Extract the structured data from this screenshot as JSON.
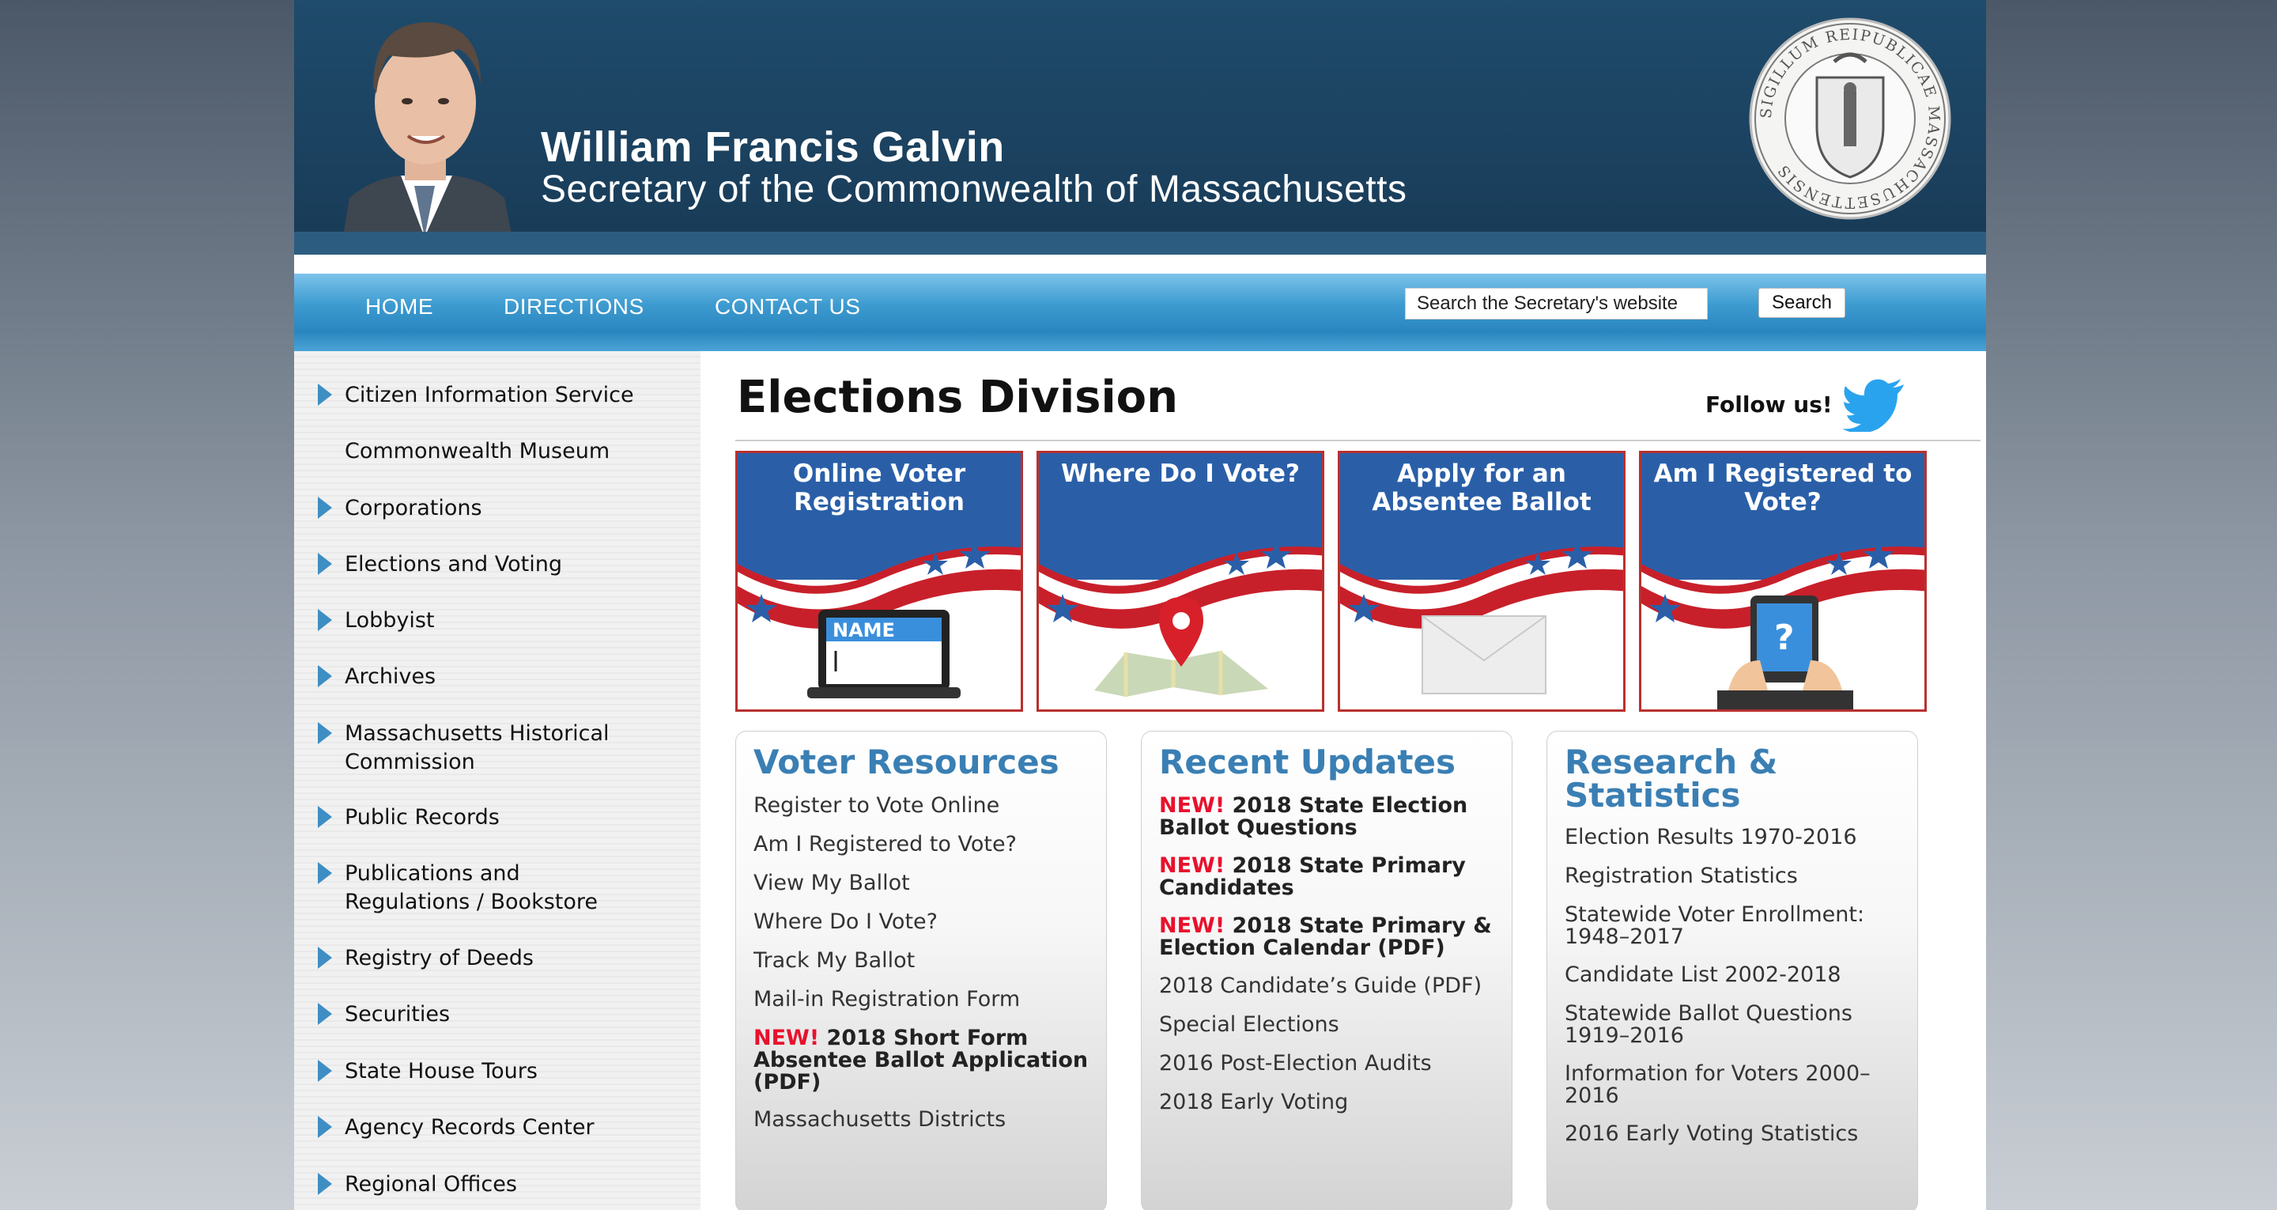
{
  "header": {
    "name": "William Francis Galvin",
    "subtitle": "Secretary of the Commonwealth of Massachusetts",
    "seal_text": "SIGILLUM REIPUBLICAE MASSACHUSETTENSIS"
  },
  "nav": {
    "home": "HOME",
    "directions": "DIRECTIONS",
    "contact": "CONTACT US",
    "search_placeholder": "Search the Secretary's website",
    "search_button": "Search"
  },
  "sidebar": {
    "items": [
      {
        "label": "Citizen Information Service",
        "arrow": true
      },
      {
        "label": "Commonwealth Museum",
        "arrow": false
      },
      {
        "label": "Corporations",
        "arrow": true
      },
      {
        "label": "Elections and Voting",
        "arrow": true
      },
      {
        "label": "Lobbyist",
        "arrow": true
      },
      {
        "label": "Archives",
        "arrow": true
      },
      {
        "label": "Massachusetts Historical Commission",
        "arrow": true
      },
      {
        "label": "Public Records",
        "arrow": true
      },
      {
        "label": "Publications and Regulations / Bookstore",
        "arrow": true
      },
      {
        "label": "Registry of Deeds",
        "arrow": true
      },
      {
        "label": "Securities",
        "arrow": true
      },
      {
        "label": "State House Tours",
        "arrow": true
      },
      {
        "label": "Agency Records Center",
        "arrow": true
      },
      {
        "label": "Regional Offices",
        "arrow": true
      }
    ]
  },
  "main": {
    "title": "Elections Division",
    "follow": "Follow us!",
    "tiles": [
      {
        "title": "Online Voter Registration",
        "name_label": "NAME"
      },
      {
        "title": "Where Do I Vote?"
      },
      {
        "title": "Apply for an Absentee Ballot"
      },
      {
        "title": "Am I Registered to Vote?",
        "icon_text": "?"
      }
    ]
  },
  "voter_resources": {
    "title": "Voter Resources",
    "links": [
      "Register to Vote Online",
      "Am I Registered to Vote?",
      "View My Ballot",
      "Where Do I Vote?",
      "Track My Ballot",
      "Mail-in Registration Form"
    ],
    "new_badge": "NEW!",
    "new_link": "2018 Short Form Absentee Ballot Application (PDF)",
    "last_link": "Massachusetts Districts"
  },
  "recent_updates": {
    "title": "Recent Updates",
    "new_badge": "NEW!",
    "new_links": [
      "2018 State Election Ballot Questions",
      "2018 State Primary Candidates",
      "2018 State Primary & Election Calendar (PDF)"
    ],
    "links": [
      "2018 Candidate’s Guide (PDF)",
      "Special Elections",
      "2016 Post-Election Audits",
      "2018 Early Voting"
    ]
  },
  "research": {
    "title": "Research & Statistics",
    "links": [
      "Election Results 1970-2016",
      "Registration Statistics",
      "Statewide Voter Enrollment: 1948–2017",
      "Candidate List 2002-2018",
      "Statewide Ballot Questions 1919–2016",
      "Information for Voters 2000–2016",
      "2016 Early Voting Statistics"
    ]
  },
  "colors": {
    "header": "#1a3f5c",
    "nav": "#2a86bf",
    "box_title": "#3a7fb4",
    "new_badge": "#e8112d",
    "tile_border": "#b8312f"
  }
}
